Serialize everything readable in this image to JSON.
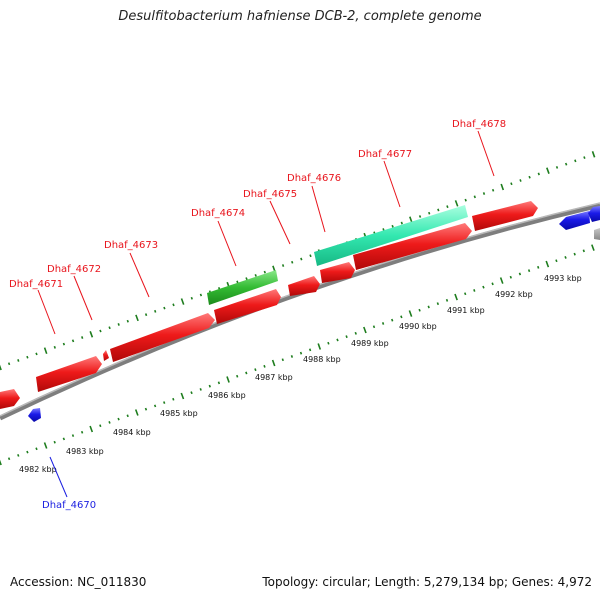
{
  "title": "Desulfitobacterium hafniense DCB-2, complete genome",
  "footer": {
    "accession": "Accession: NC_011830",
    "summary": "Topology: circular; Length: 5,279,134 bp; Genes: 4,972"
  },
  "colors": {
    "plus_strand_gene": "#e8141c",
    "minus_strand_gene": "#1a1ee0",
    "highlight_green": "#33bb33",
    "highlight_cyan": "#33e8b0",
    "backbone": "#8a8a8a",
    "ruler_dots": "#1e7d1e"
  },
  "scale_labels": [
    "4982 kbp",
    "4983 kbp",
    "4984 kbp",
    "4985 kbp",
    "4986 kbp",
    "4987 kbp",
    "4988 kbp",
    "4989 kbp",
    "4990 kbp",
    "4991 kbp",
    "4992 kbp",
    "4993 kbp"
  ],
  "genes": [
    {
      "name": "Dhaf_4670",
      "strand": "-",
      "color": "minus_strand_gene"
    },
    {
      "name": "Dhaf_4671",
      "strand": "+",
      "color": "plus_strand_gene"
    },
    {
      "name": "Dhaf_4672",
      "strand": "+",
      "color": "plus_strand_gene"
    },
    {
      "name": "Dhaf_4673",
      "strand": "+",
      "color": "plus_strand_gene"
    },
    {
      "name": "Dhaf_4674",
      "strand": "+",
      "color": "plus_strand_gene"
    },
    {
      "name": "Dhaf_4675",
      "strand": "+",
      "color": "plus_strand_gene"
    },
    {
      "name": "Dhaf_4676",
      "strand": "+",
      "color": "plus_strand_gene"
    },
    {
      "name": "Dhaf_4677",
      "strand": "+",
      "color": "plus_strand_gene"
    },
    {
      "name": "Dhaf_4678",
      "strand": "+",
      "color": "plus_strand_gene"
    }
  ]
}
